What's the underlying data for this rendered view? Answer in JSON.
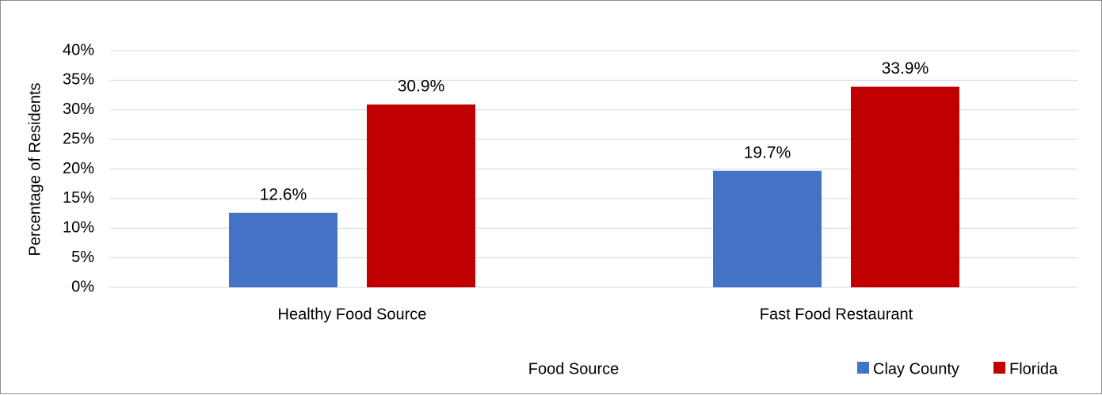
{
  "chart_data": {
    "type": "bar",
    "categories": [
      "Healthy Food Source",
      "Fast Food Restaurant"
    ],
    "series": [
      {
        "name": "Clay County",
        "values": [
          12.6,
          19.7
        ],
        "labels": [
          "12.6%",
          "19.7%"
        ],
        "color": "#4472C4"
      },
      {
        "name": "Florida",
        "values": [
          30.9,
          33.9
        ],
        "labels": [
          "30.9%",
          "33.9%"
        ],
        "color": "#C00000"
      }
    ],
    "xlabel": "Food Source",
    "ylabel": "Percentage of Residents",
    "ylim": [
      0,
      40
    ],
    "yticks": [
      "0%",
      "5%",
      "10%",
      "15%",
      "20%",
      "25%",
      "30%",
      "35%",
      "40%"
    ],
    "ytick_values": [
      0,
      5,
      10,
      15,
      20,
      25,
      30,
      35,
      40
    ],
    "grid": true,
    "legend_position": "bottom-right",
    "gridline_color": "#d9d9d9"
  }
}
